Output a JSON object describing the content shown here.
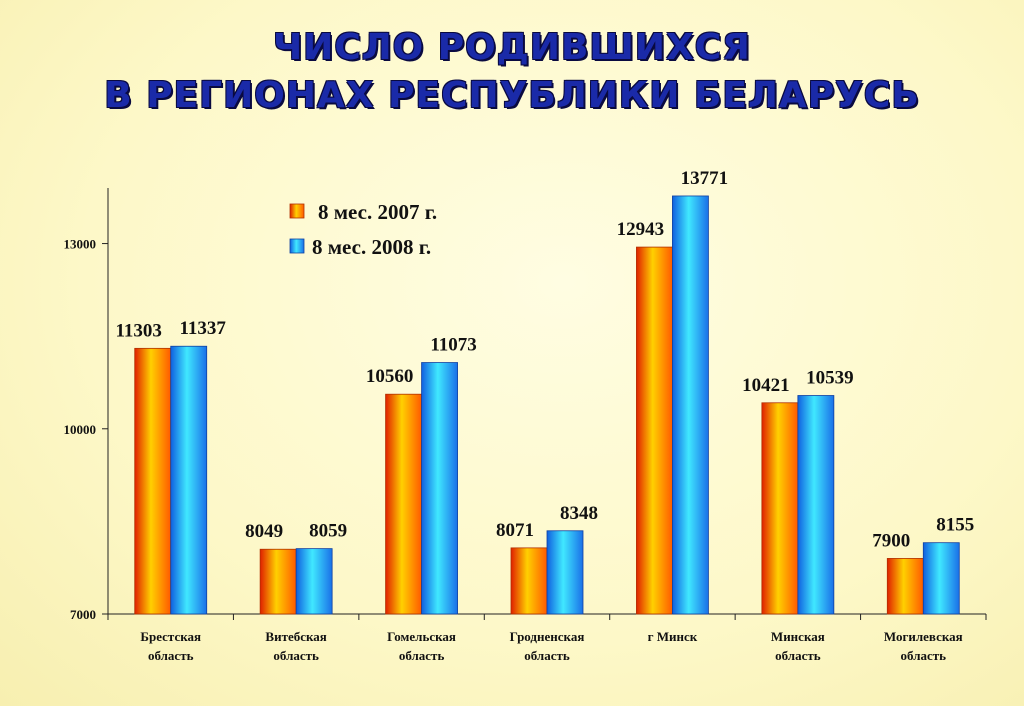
{
  "title": {
    "line1": "ЧИСЛО РОДИВШИХСЯ",
    "line2": "В РЕГИОНАХ  РЕСПУБЛИКИ БЕЛАРУСЬ"
  },
  "colors": {
    "series_2007": "#ff8c00",
    "series_2008": "#1e90ff"
  },
  "chart_data": {
    "type": "bar",
    "title": "ЧИСЛО РОДИВШИХСЯ В РЕГИОНАХ  РЕСПУБЛИКИ БЕЛАРУСЬ",
    "categories": [
      [
        "Брестская",
        "область"
      ],
      [
        "Витебская",
        "область"
      ],
      [
        "Гомельская",
        "область"
      ],
      [
        "Гродненская",
        "область"
      ],
      [
        "г Минск"
      ],
      [
        "Минская",
        "область"
      ],
      [
        "Могилевская",
        "область"
      ]
    ],
    "series": [
      {
        "name": "8 мес. 2007 г.",
        "values": [
          11303,
          8049,
          10560,
          8071,
          12943,
          10421,
          7900
        ]
      },
      {
        "name": "8 мес. 2008 г.",
        "values": [
          11337,
          8059,
          11073,
          8348,
          13771,
          10539,
          8155
        ]
      }
    ],
    "yticks": [
      7000,
      10000,
      13000
    ],
    "ylim": [
      7000,
      13900
    ],
    "xlabel": "",
    "ylabel": "",
    "legend": "top-center",
    "grid": false
  }
}
